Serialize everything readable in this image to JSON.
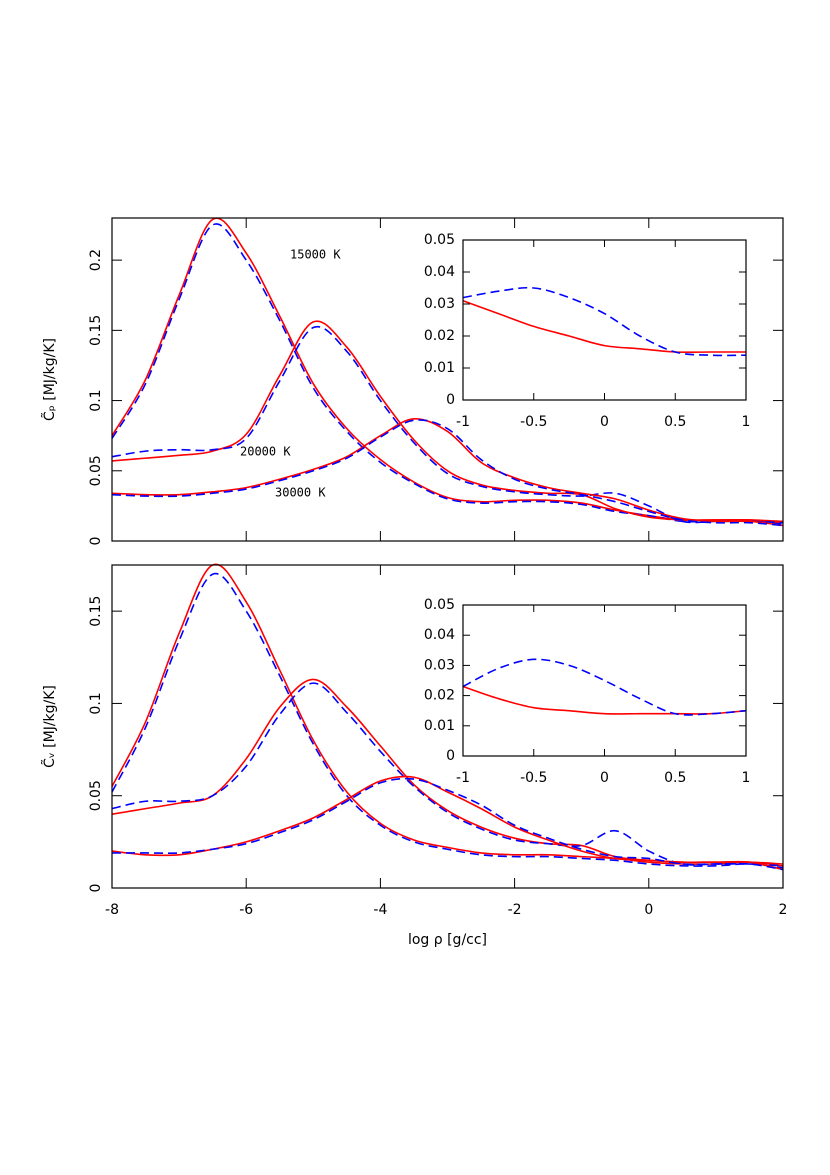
{
  "chart_data": [
    {
      "type": "line",
      "ylabel": "C̃ₚ [MJ/kg/K]",
      "xtick_labels": false,
      "annotations": [
        "15000 K",
        "20000 K",
        "30000 K"
      ],
      "xlim": [
        -8,
        2
      ],
      "ylim": [
        0,
        0.23
      ],
      "xticks": [
        -8,
        -6,
        -4,
        -2,
        0,
        2
      ],
      "yticks": [
        0,
        0.05,
        0.1,
        0.15,
        0.2
      ],
      "x": [
        -8,
        -7.5,
        -7,
        -6.5,
        -6,
        -5.5,
        -5,
        -4.5,
        -4,
        -3.5,
        -3,
        -2.5,
        -2,
        -1.5,
        -1,
        -0.5,
        0,
        0.5,
        1,
        1.5,
        2
      ],
      "series": [
        {
          "color": "#ff0000",
          "linestyle": "solid",
          "values": [
            0.075,
            0.115,
            0.175,
            0.229,
            0.205,
            0.16,
            0.112,
            0.08,
            0.058,
            0.042,
            0.031,
            0.028,
            0.029,
            0.029,
            0.027,
            0.022,
            0.018,
            0.015,
            0.015,
            0.015,
            0.013
          ]
        },
        {
          "color": "#0000ff",
          "linestyle": "dashed",
          "values": [
            0.073,
            0.112,
            0.172,
            0.225,
            0.2,
            0.157,
            0.109,
            0.078,
            0.056,
            0.041,
            0.03,
            0.027,
            0.028,
            0.028,
            0.026,
            0.021,
            0.018,
            0.014,
            0.014,
            0.014,
            0.012
          ]
        },
        {
          "color": "#ff0000",
          "linestyle": "solid",
          "values": [
            0.057,
            0.059,
            0.061,
            0.064,
            0.076,
            0.118,
            0.156,
            0.138,
            0.103,
            0.072,
            0.05,
            0.04,
            0.036,
            0.034,
            0.033,
            0.023,
            0.017,
            0.015,
            0.015,
            0.015,
            0.014
          ]
        },
        {
          "color": "#0000ff",
          "linestyle": "dashed",
          "values": [
            0.06,
            0.064,
            0.065,
            0.065,
            0.073,
            0.114,
            0.152,
            0.135,
            0.1,
            0.07,
            0.048,
            0.039,
            0.035,
            0.033,
            0.032,
            0.034,
            0.025,
            0.014,
            0.014,
            0.014,
            0.013
          ]
        },
        {
          "color": "#ff0000",
          "linestyle": "solid",
          "values": [
            0.034,
            0.033,
            0.033,
            0.035,
            0.038,
            0.044,
            0.051,
            0.06,
            0.075,
            0.087,
            0.078,
            0.056,
            0.045,
            0.038,
            0.034,
            0.03,
            0.022,
            0.016,
            0.014,
            0.014,
            0.011
          ]
        },
        {
          "color": "#0000ff",
          "linestyle": "dashed",
          "values": [
            0.033,
            0.032,
            0.032,
            0.034,
            0.037,
            0.043,
            0.05,
            0.059,
            0.074,
            0.086,
            0.08,
            0.058,
            0.044,
            0.037,
            0.033,
            0.028,
            0.021,
            0.015,
            0.013,
            0.013,
            0.011
          ]
        }
      ]
    },
    {
      "type": "line",
      "xlim": [
        -1,
        1
      ],
      "ylim": [
        0,
        0.05
      ],
      "xticks": [
        -1,
        -0.5,
        0,
        0.5,
        1
      ],
      "yticks": [
        0,
        0.01,
        0.02,
        0.03,
        0.04,
        0.05
      ],
      "x": [
        -1,
        -0.75,
        -0.5,
        -0.25,
        0,
        0.25,
        0.5,
        0.75,
        1
      ],
      "series": [
        {
          "color": "#ff0000",
          "linestyle": "solid",
          "values": [
            0.031,
            0.027,
            0.023,
            0.02,
            0.017,
            0.016,
            0.015,
            0.015,
            0.015
          ]
        },
        {
          "color": "#0000ff",
          "linestyle": "dashed",
          "values": [
            0.032,
            0.034,
            0.035,
            0.032,
            0.027,
            0.02,
            0.015,
            0.014,
            0.014
          ]
        }
      ]
    },
    {
      "type": "line",
      "ylabel": "C̃ᵥ [MJ/kg/K]",
      "xlabel": "log ρ [g/cc]",
      "xlim": [
        -8,
        2
      ],
      "ylim": [
        0,
        0.175
      ],
      "xticks": [
        -8,
        -6,
        -4,
        -2,
        0,
        2
      ],
      "yticks": [
        0,
        0.05,
        0.1,
        0.15
      ],
      "x": [
        -8,
        -7.5,
        -7,
        -6.5,
        -6,
        -5.5,
        -5,
        -4.5,
        -4,
        -3.5,
        -3,
        -2.5,
        -2,
        -1.5,
        -1,
        -0.5,
        0,
        0.5,
        1,
        1.5,
        2
      ],
      "series": [
        {
          "color": "#ff0000",
          "linestyle": "solid",
          "values": [
            0.055,
            0.09,
            0.138,
            0.175,
            0.155,
            0.118,
            0.08,
            0.052,
            0.035,
            0.026,
            0.022,
            0.019,
            0.018,
            0.018,
            0.017,
            0.016,
            0.014,
            0.013,
            0.013,
            0.014,
            0.012
          ]
        },
        {
          "color": "#0000ff",
          "linestyle": "dashed",
          "values": [
            0.052,
            0.087,
            0.134,
            0.17,
            0.15,
            0.115,
            0.078,
            0.05,
            0.034,
            0.025,
            0.021,
            0.018,
            0.017,
            0.017,
            0.016,
            0.015,
            0.013,
            0.012,
            0.012,
            0.013,
            0.011
          ]
        },
        {
          "color": "#ff0000",
          "linestyle": "solid",
          "values": [
            0.04,
            0.043,
            0.046,
            0.05,
            0.07,
            0.098,
            0.113,
            0.098,
            0.077,
            0.056,
            0.042,
            0.033,
            0.027,
            0.024,
            0.023,
            0.017,
            0.015,
            0.014,
            0.014,
            0.014,
            0.013
          ]
        },
        {
          "color": "#0000ff",
          "linestyle": "dashed",
          "values": [
            0.043,
            0.047,
            0.047,
            0.05,
            0.066,
            0.094,
            0.111,
            0.095,
            0.074,
            0.055,
            0.041,
            0.032,
            0.026,
            0.024,
            0.023,
            0.031,
            0.02,
            0.013,
            0.013,
            0.013,
            0.012
          ]
        },
        {
          "color": "#ff0000",
          "linestyle": "solid",
          "values": [
            0.02,
            0.018,
            0.018,
            0.021,
            0.025,
            0.031,
            0.038,
            0.048,
            0.058,
            0.06,
            0.052,
            0.043,
            0.033,
            0.026,
            0.02,
            0.016,
            0.015,
            0.014,
            0.014,
            0.014,
            0.01
          ]
        },
        {
          "color": "#0000ff",
          "linestyle": "dashed",
          "values": [
            0.019,
            0.019,
            0.019,
            0.021,
            0.024,
            0.03,
            0.037,
            0.047,
            0.057,
            0.059,
            0.053,
            0.045,
            0.034,
            0.027,
            0.021,
            0.017,
            0.016,
            0.013,
            0.013,
            0.013,
            0.01
          ]
        }
      ]
    },
    {
      "type": "line",
      "xlim": [
        -1,
        1
      ],
      "ylim": [
        0,
        0.05
      ],
      "xticks": [
        -1,
        -0.5,
        0,
        0.5,
        1
      ],
      "yticks": [
        0,
        0.01,
        0.02,
        0.03,
        0.04,
        0.05
      ],
      "x": [
        -1,
        -0.75,
        -0.5,
        -0.25,
        0,
        0.25,
        0.5,
        0.75,
        1
      ],
      "series": [
        {
          "color": "#ff0000",
          "linestyle": "solid",
          "values": [
            0.023,
            0.019,
            0.016,
            0.015,
            0.014,
            0.014,
            0.014,
            0.014,
            0.015
          ]
        },
        {
          "color": "#0000ff",
          "linestyle": "dashed",
          "values": [
            0.023,
            0.029,
            0.032,
            0.03,
            0.025,
            0.019,
            0.014,
            0.014,
            0.015
          ]
        }
      ]
    }
  ]
}
